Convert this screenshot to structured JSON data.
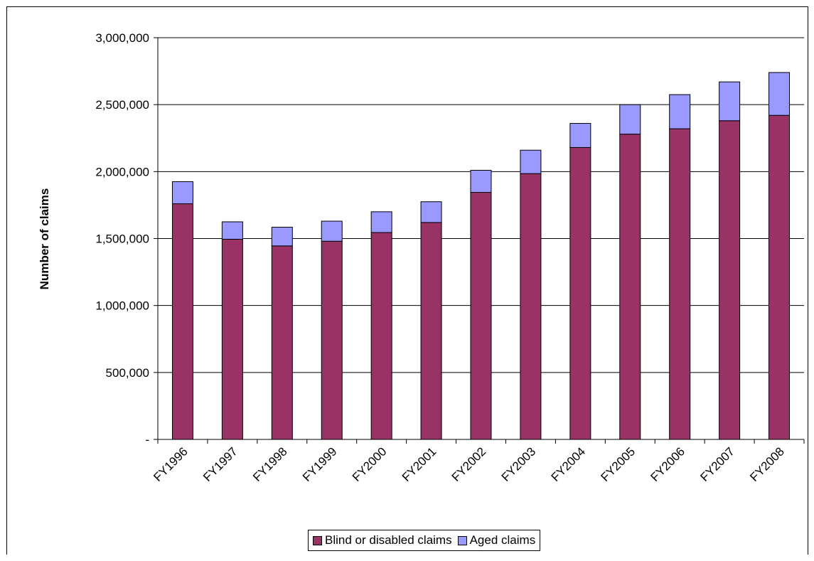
{
  "colors": {
    "blind_or_disabled": "#993366",
    "aged": "#9999FF",
    "gridline": "#000000"
  },
  "legend": {
    "items": [
      {
        "label": "Blind or disabled claims",
        "color": "#993366"
      },
      {
        "label": "Aged claims",
        "color": "#9999FF"
      }
    ],
    "placement": "bottom"
  },
  "chart_data": {
    "type": "bar",
    "stacked": true,
    "title": "",
    "xlabel": "",
    "ylabel": "Number of claims",
    "ylim": [
      0,
      3000000
    ],
    "y_ticks": [
      0,
      500000,
      1000000,
      1500000,
      2000000,
      2500000,
      3000000
    ],
    "y_tick_labels": [
      "-",
      "500,000",
      "1,000,000",
      "1,500,000",
      "2,000,000",
      "2,500,000",
      "3,000,000"
    ],
    "grid": "horizontal",
    "categories": [
      "FY1996",
      "FY1997",
      "FY1998",
      "FY1999",
      "FY2000",
      "FY2001",
      "FY2002",
      "FY2003",
      "FY2004",
      "FY2005",
      "FY2006",
      "FY2007",
      "FY2008"
    ],
    "series": [
      {
        "name": "Blind or disabled claims",
        "values": [
          1760000,
          1495000,
          1445000,
          1480000,
          1545000,
          1620000,
          1845000,
          1985000,
          2180000,
          2280000,
          2320000,
          2380000,
          2420000
        ]
      },
      {
        "name": "Aged claims",
        "values": [
          165000,
          130000,
          140000,
          150000,
          155000,
          155000,
          165000,
          175000,
          180000,
          220000,
          255000,
          290000,
          320000
        ]
      }
    ]
  }
}
